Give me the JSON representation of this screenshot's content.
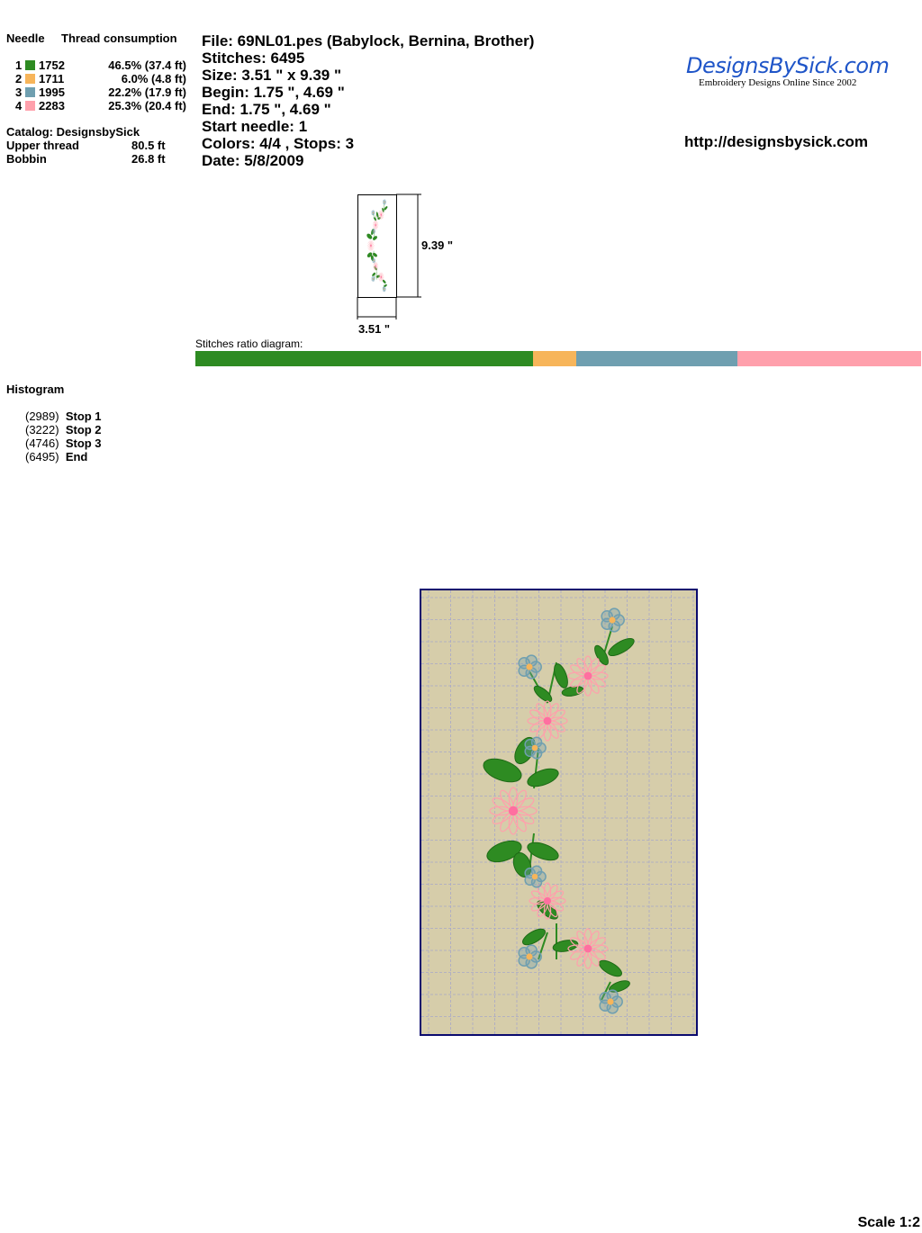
{
  "thread_table": {
    "header_needle": "Needle",
    "header_consumption": "Thread consumption",
    "rows": [
      {
        "needle": "1",
        "code": "1752",
        "consumption": "46.5% (37.4 ft)",
        "color": "#2e8b22",
        "ratio": 46.5
      },
      {
        "needle": "2",
        "code": "1711",
        "consumption": "6.0% (4.8 ft)",
        "color": "#f7b55a",
        "ratio": 6.0
      },
      {
        "needle": "3",
        "code": "1995",
        "consumption": "22.2% (17.9 ft)",
        "color": "#6f9fb0",
        "ratio": 22.2
      },
      {
        "needle": "4",
        "code": "2283",
        "consumption": "25.3% (20.4 ft)",
        "color": "#ffa0ac",
        "ratio": 25.3
      }
    ]
  },
  "catalog": "Catalog: DesignsbySick",
  "upper_thread": {
    "label": "Upper thread",
    "value": "80.5 ft"
  },
  "bobbin": {
    "label": "Bobbin",
    "value": "26.8 ft"
  },
  "info": {
    "file": "File: 69NL01.pes  (Babylock, Bernina, Brother)",
    "stitches": "Stitches: 6495",
    "size": "Size: 3.51 \" x 9.39 \"",
    "begin": "Begin: 1.75 \", 4.69 \"",
    "end": "End: 1.75 \", 4.69 \"",
    "start_needle": "Start needle: 1",
    "colors": "Colors: 4/4 , Stops: 3",
    "date": "Date: 5/8/2009"
  },
  "logo": {
    "name": "DesignsBySick.com",
    "tagline": "Embroidery Designs Online Since 2002"
  },
  "url": "http://designsbysick.com",
  "dims": {
    "height": "9.39 \"",
    "width": "3.51 \""
  },
  "ratio_label": "Stitches ratio diagram:",
  "histogram": {
    "title": "Histogram",
    "items": [
      {
        "count": "(2989)",
        "label": "Stop 1"
      },
      {
        "count": "(3222)",
        "label": "Stop 2"
      },
      {
        "count": "(4746)",
        "label": "Stop 3"
      },
      {
        "count": "(6495)",
        "label": "End"
      }
    ]
  },
  "scale": "Scale 1:2"
}
